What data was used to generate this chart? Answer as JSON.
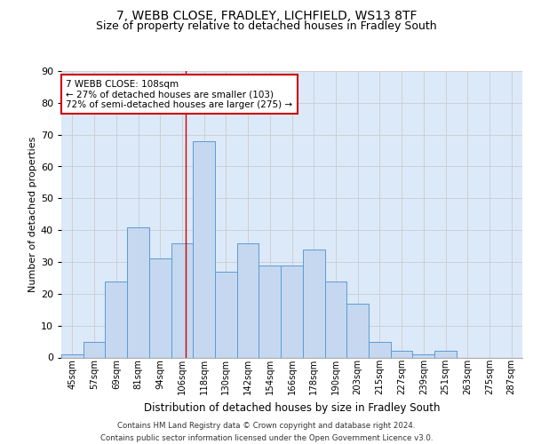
{
  "title_line1": "7, WEBB CLOSE, FRADLEY, LICHFIELD, WS13 8TF",
  "title_line2": "Size of property relative to detached houses in Fradley South",
  "xlabel": "Distribution of detached houses by size in Fradley South",
  "ylabel": "Number of detached properties",
  "categories": [
    "45sqm",
    "57sqm",
    "69sqm",
    "81sqm",
    "94sqm",
    "106sqm",
    "118sqm",
    "130sqm",
    "142sqm",
    "154sqm",
    "166sqm",
    "178sqm",
    "190sqm",
    "203sqm",
    "215sqm",
    "227sqm",
    "239sqm",
    "251sqm",
    "263sqm",
    "275sqm",
    "287sqm"
  ],
  "values": [
    1,
    5,
    24,
    41,
    31,
    36,
    68,
    27,
    36,
    29,
    29,
    34,
    24,
    17,
    5,
    2,
    1,
    2,
    0,
    0,
    0
  ],
  "bar_color": "#c5d8f0",
  "bar_edge_color": "#5b9bd5",
  "vline_color": "#cc0000",
  "annotation_text": "7 WEBB CLOSE: 108sqm\n← 27% of detached houses are smaller (103)\n72% of semi-detached houses are larger (275) →",
  "annotation_box_color": "#ffffff",
  "annotation_box_edge": "#cc0000",
  "ylim": [
    0,
    90
  ],
  "yticks": [
    0,
    10,
    20,
    30,
    40,
    50,
    60,
    70,
    80,
    90
  ],
  "grid_color": "#cccccc",
  "background_color": "#dce9f8",
  "footnote": "Contains HM Land Registry data © Crown copyright and database right 2024.\nContains public sector information licensed under the Open Government Licence v3.0.",
  "title_fontsize": 10,
  "subtitle_fontsize": 9,
  "annot_fontsize": 7.5,
  "ylabel_fontsize": 8,
  "xlabel_fontsize": 8.5
}
